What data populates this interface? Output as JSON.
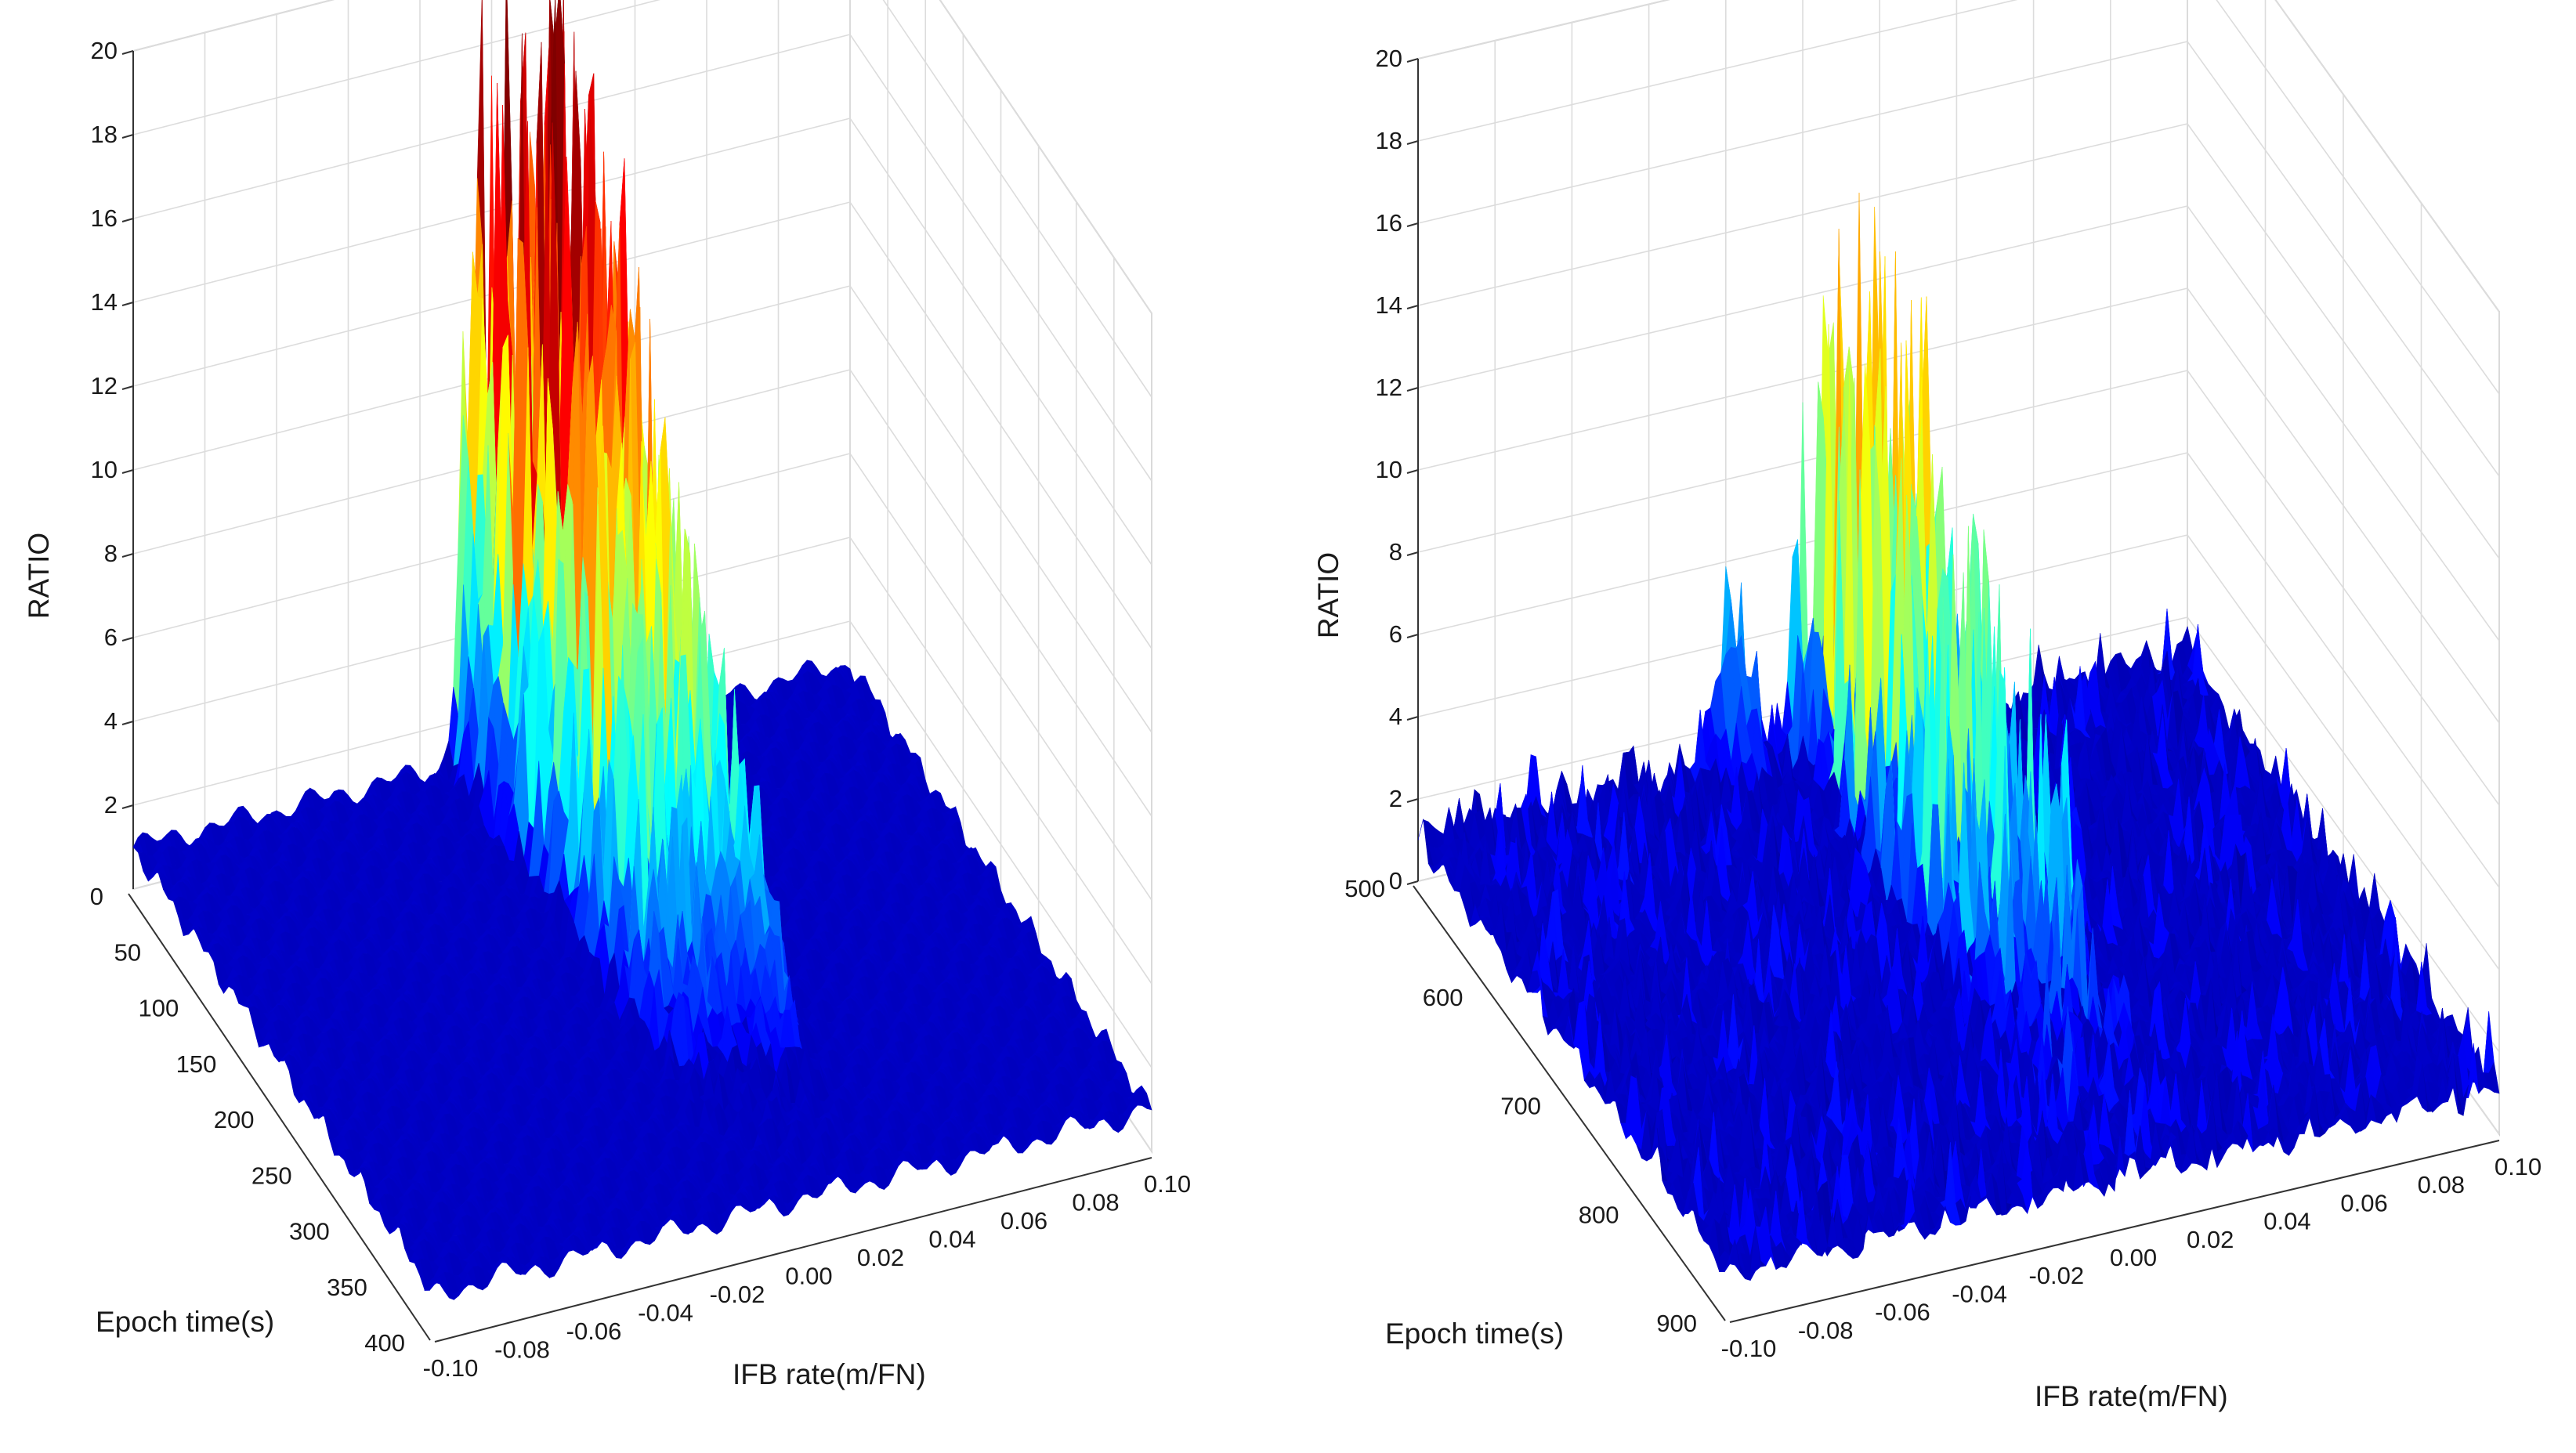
{
  "chart_data": [
    {
      "type": "surface",
      "title": "",
      "xlabel": "IFB rate(m/FN)",
      "ylabel": "Epoch time(s)",
      "zlabel": "RATIO",
      "x_ticks": [
        "-0.10",
        "-0.08",
        "-0.06",
        "-0.04",
        "-0.02",
        "0.00",
        "0.02",
        "0.04",
        "0.06",
        "0.08",
        "0.10"
      ],
      "y_ticks": [
        "0",
        "50",
        "100",
        "150",
        "200",
        "250",
        "300",
        "350",
        "400"
      ],
      "z_ticks": [
        "2",
        "4",
        "6",
        "8",
        "10",
        "12",
        "14",
        "16",
        "18",
        "20"
      ],
      "xlim": [
        -0.1,
        0.1
      ],
      "ylim": [
        0,
        400
      ],
      "zlim": [
        0,
        20
      ],
      "grid": true,
      "colormap": "jet",
      "baseline_ratio": 1,
      "peak_ifb_rate": 0.02,
      "peak_ratio": 19.5,
      "secondary_peak_ratio": 13,
      "peak_ridge_ifb_rate": [
        -0.006,
        0.02
      ]
    },
    {
      "type": "surface",
      "title": "",
      "xlabel": "IFB rate(m/FN)",
      "ylabel": "Epoch time(s)",
      "zlabel": "RATIO",
      "x_ticks": [
        "-0.10",
        "-0.08",
        "-0.06",
        "-0.04",
        "-0.02",
        "0.00",
        "0.02",
        "0.04",
        "0.06",
        "0.08",
        "0.10"
      ],
      "y_ticks": [
        "500",
        "600",
        "700",
        "800",
        "900"
      ],
      "z_ticks": [
        "0",
        "2",
        "4",
        "6",
        "8",
        "10",
        "12",
        "14",
        "16",
        "18",
        "20"
      ],
      "xlim": [
        -0.1,
        0.1
      ],
      "ylim": [
        500,
        900
      ],
      "zlim": [
        0,
        20
      ],
      "grid": true,
      "colormap": "jet",
      "baseline_ratio": 1,
      "peak_ifb_rate": 0.02,
      "peak_ratio": 13,
      "secondary_peak_ratio": 11.5,
      "peak_ridge_ifb_rate": [
        0.0,
        0.022
      ]
    }
  ]
}
